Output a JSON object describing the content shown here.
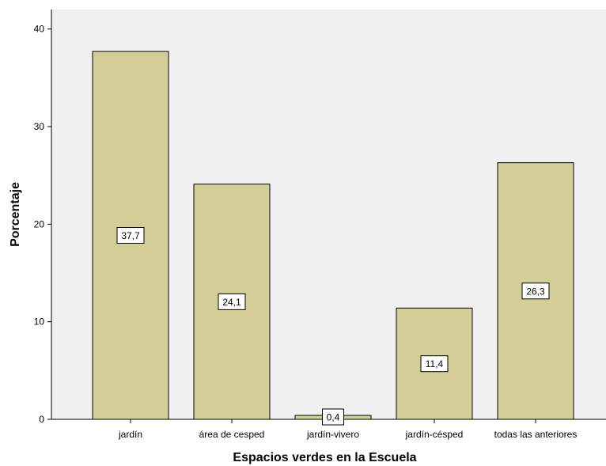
{
  "chart_data": {
    "type": "bar",
    "categories": [
      "jardín",
      "área de cesped",
      "jardín-vivero",
      "jardín-césped",
      "todas las anteriores"
    ],
    "values": [
      37.7,
      24.1,
      0.4,
      11.4,
      26.3
    ],
    "data_labels": [
      "37,7",
      "24,1",
      "0,4",
      "11,4",
      "26,3"
    ],
    "title": "",
    "xlabel": "Espacios verdes en la Escuela",
    "ylabel": "Porcentaje",
    "ylim": [
      0,
      42
    ],
    "yticks": [
      0,
      10,
      20,
      30,
      40
    ],
    "grid": false,
    "legend": "none",
    "colors": {
      "plot_background": "#f0f0f0",
      "bar_fill": "#d3ce97",
      "bar_stroke": "#000000",
      "label_box_fill": "#ffffff"
    }
  }
}
